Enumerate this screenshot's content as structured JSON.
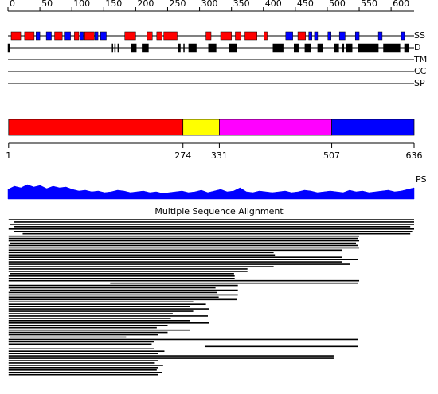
{
  "ruler": {
    "range": [
      0,
      636
    ],
    "ticks": [
      0,
      50,
      100,
      150,
      200,
      250,
      300,
      350,
      400,
      450,
      500,
      550,
      600
    ]
  },
  "helix_color": "#ff0000",
  "strand_color": "#0000ff",
  "disorder_color": "#000000",
  "tracks": [
    {
      "label": "SS",
      "helices": [
        [
          5,
          20
        ],
        [
          26,
          41
        ],
        [
          73,
          85
        ],
        [
          104,
          111
        ],
        [
          120,
          135
        ],
        [
          183,
          200
        ],
        [
          218,
          226
        ],
        [
          233,
          241
        ],
        [
          244,
          265
        ],
        [
          310,
          318
        ],
        [
          333,
          350
        ],
        [
          356,
          365
        ],
        [
          371,
          390
        ],
        [
          401,
          406
        ],
        [
          454,
          466
        ]
      ],
      "strands": [
        [
          44,
          50
        ],
        [
          60,
          68
        ],
        [
          88,
          98
        ],
        [
          113,
          118
        ],
        [
          136,
          141
        ],
        [
          145,
          154
        ],
        [
          435,
          446
        ],
        [
          471,
          476
        ],
        [
          480,
          485
        ],
        [
          501,
          506
        ],
        [
          519,
          528
        ],
        [
          544,
          550
        ],
        [
          580,
          586
        ],
        [
          616,
          621
        ]
      ]
    },
    {
      "label": "D",
      "regions": [
        [
          0,
          3
        ],
        [
          163,
          164
        ],
        [
          167,
          168
        ],
        [
          172,
          173
        ],
        [
          193,
          201
        ],
        [
          210,
          220
        ],
        [
          266,
          270
        ],
        [
          275,
          276
        ],
        [
          283,
          295
        ],
        [
          314,
          326
        ],
        [
          346,
          358
        ],
        [
          415,
          431
        ],
        [
          448,
          455
        ],
        [
          465,
          474
        ],
        [
          485,
          493
        ],
        [
          511,
          518
        ],
        [
          524,
          526
        ],
        [
          530,
          539
        ],
        [
          549,
          580
        ],
        [
          588,
          614
        ],
        [
          621,
          628
        ]
      ]
    },
    {
      "label": "TM"
    },
    {
      "label": "CC"
    },
    {
      "label": "SP"
    }
  ],
  "domains": {
    "boundaries": [
      1,
      274,
      331,
      507,
      636
    ],
    "colors": [
      "#ff0000",
      "#ffff00",
      "#ff00ff",
      "#0000ff"
    ]
  },
  "ps": {
    "label": "PS",
    "color": "#0000ff",
    "values": [
      12,
      16,
      14,
      18,
      15,
      17,
      13,
      16,
      14,
      15,
      12,
      10,
      11,
      9,
      10,
      8,
      9,
      11,
      10,
      8,
      9,
      10,
      8,
      9,
      7,
      8,
      9,
      10,
      8,
      9,
      11,
      8,
      10,
      12,
      9,
      10,
      14,
      9,
      8,
      10,
      9,
      8,
      9,
      10,
      8,
      9,
      11,
      10,
      8,
      9,
      10,
      9,
      8,
      11,
      9,
      10,
      8,
      9,
      10,
      11,
      9,
      10,
      12,
      14
    ]
  },
  "msa": {
    "title": "Multiple Sequence Alignment",
    "rows": [
      [
        1,
        636
      ],
      [
        10,
        636
      ],
      [
        3,
        636
      ],
      [
        10,
        630
      ],
      [
        1,
        636
      ],
      [
        10,
        633
      ],
      [
        23,
        630
      ],
      [
        1,
        550
      ],
      [
        1,
        548
      ],
      [
        1,
        550
      ],
      [
        3,
        545
      ],
      [
        1,
        548
      ],
      [
        1,
        550
      ],
      [
        1,
        523
      ],
      [
        1,
        416
      ],
      [
        1,
        418
      ],
      [
        1,
        523
      ],
      [
        1,
        548
      ],
      [
        1,
        523
      ],
      [
        1,
        535
      ],
      [
        1,
        416
      ],
      [
        1,
        375
      ],
      [
        1,
        375
      ],
      [
        3,
        354
      ],
      [
        1,
        355
      ],
      [
        1,
        355
      ],
      [
        1,
        550
      ],
      [
        160,
        548
      ],
      [
        1,
        360
      ],
      [
        1,
        325
      ],
      [
        3,
        360
      ],
      [
        1,
        328
      ],
      [
        1,
        360
      ],
      [
        1,
        330
      ],
      [
        1,
        358
      ],
      [
        1,
        290
      ],
      [
        1,
        310
      ],
      [
        1,
        285
      ],
      [
        1,
        315
      ],
      [
        1,
        290
      ],
      [
        1,
        258
      ],
      [
        1,
        313
      ],
      [
        1,
        255
      ],
      [
        1,
        285
      ],
      [
        1,
        315
      ],
      [
        1,
        250
      ],
      [
        1,
        233
      ],
      [
        1,
        285
      ],
      [
        1,
        250
      ],
      [
        1,
        235
      ],
      [
        3,
        185
      ],
      [
        1,
        548
      ],
      [
        1,
        229
      ],
      [
        1,
        225
      ],
      [
        308,
        548
      ],
      [
        1,
        229
      ],
      [
        1,
        245
      ],
      [
        1,
        235
      ],
      [
        1,
        510
      ],
      [
        1,
        510
      ],
      [
        1,
        235
      ],
      [
        1,
        230
      ],
      [
        1,
        243
      ],
      [
        1,
        235
      ],
      [
        1,
        233
      ],
      [
        1,
        241
      ],
      [
        1,
        235
      ]
    ]
  }
}
